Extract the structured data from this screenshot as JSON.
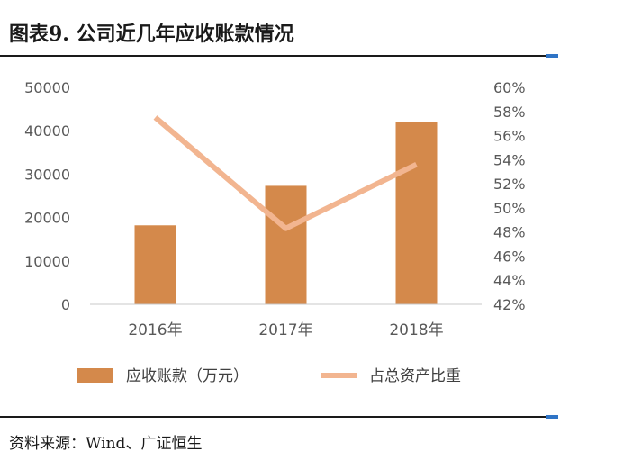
{
  "figure_title": "图表9.   公司近几年应收账款情况",
  "source_note": "资料来源：Wind、广证恒生",
  "colors": {
    "bar": "#D4894B",
    "line": "#F2B590",
    "axis_text": "#595959",
    "rule": "#1a1a1a",
    "rule_accent": "#2f74c6"
  },
  "chart_data": {
    "type": "bar",
    "categories": [
      "2016年",
      "2017年",
      "2018年"
    ],
    "series": [
      {
        "name": "应收账款（万元）",
        "type": "bar",
        "axis": "left",
        "values": [
          18200,
          27300,
          42000
        ]
      },
      {
        "name": "占总资产比重",
        "type": "line",
        "axis": "right",
        "values": [
          57.5,
          48.3,
          53.6
        ]
      }
    ],
    "y_left": {
      "min": 0,
      "max": 50000,
      "ticks": [
        "0",
        "10000",
        "20000",
        "30000",
        "40000",
        "50000"
      ]
    },
    "y_right": {
      "min": 42,
      "max": 60,
      "ticks": [
        "42%",
        "44%",
        "46%",
        "48%",
        "50%",
        "52%",
        "54%",
        "56%",
        "58%",
        "60%"
      ]
    },
    "grid": false,
    "legend_position": "bottom"
  }
}
